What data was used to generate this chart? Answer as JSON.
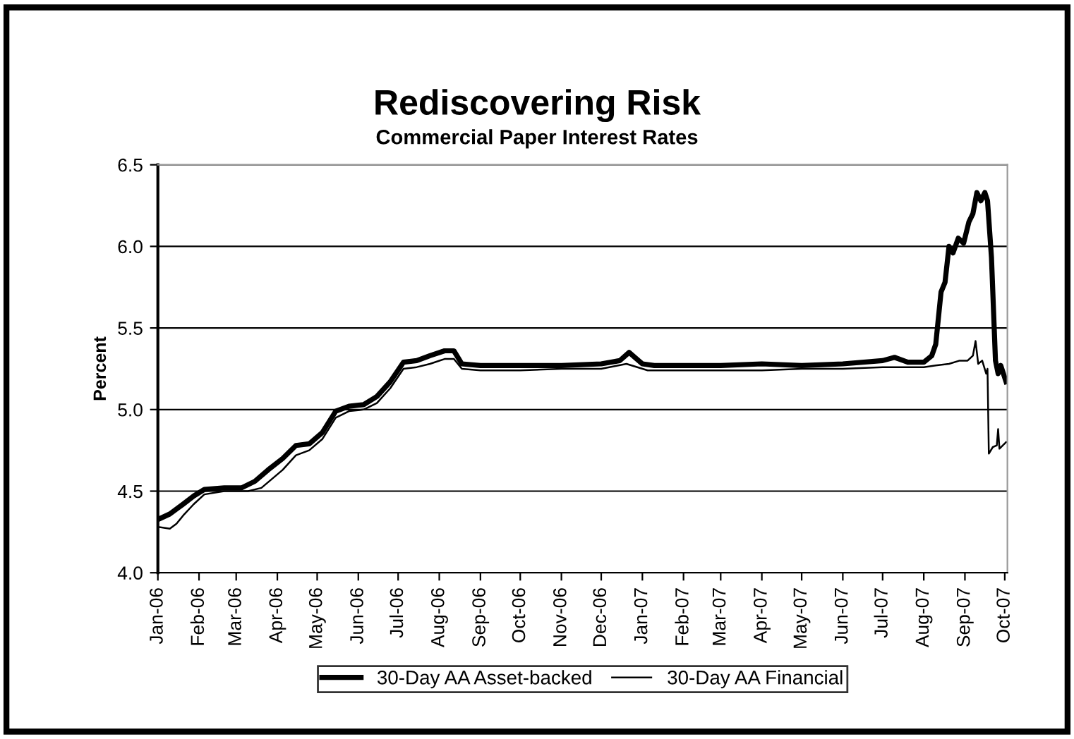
{
  "chart_data": {
    "type": "line",
    "title": "Rediscovering Risk",
    "subtitle": "Commercial Paper Interest Rates",
    "ylabel": "Percent",
    "ylim": [
      4.0,
      6.5
    ],
    "yticks": [
      {
        "value": 4.0,
        "label": "4.0"
      },
      {
        "value": 4.5,
        "label": "4.5"
      },
      {
        "value": 5.0,
        "label": "5.0"
      },
      {
        "value": 5.5,
        "label": "5.5"
      },
      {
        "value": 6.0,
        "label": "6.0"
      },
      {
        "value": 6.5,
        "label": "6.5"
      }
    ],
    "xlim": [
      "2006-01-01",
      "2007-10-03"
    ],
    "xticks": [
      {
        "value": "2006-01-01",
        "label": "Jan-06"
      },
      {
        "value": "2006-02-01",
        "label": "Feb-06"
      },
      {
        "value": "2006-03-01",
        "label": "Mar-06"
      },
      {
        "value": "2006-04-01",
        "label": "Apr-06"
      },
      {
        "value": "2006-05-01",
        "label": "May-06"
      },
      {
        "value": "2006-06-01",
        "label": "Jun-06"
      },
      {
        "value": "2006-07-01",
        "label": "Jul-06"
      },
      {
        "value": "2006-08-01",
        "label": "Aug-06"
      },
      {
        "value": "2006-09-01",
        "label": "Sep-06"
      },
      {
        "value": "2006-10-01",
        "label": "Oct-06"
      },
      {
        "value": "2006-11-01",
        "label": "Nov-06"
      },
      {
        "value": "2006-12-01",
        "label": "Dec-06"
      },
      {
        "value": "2007-01-01",
        "label": "Jan-07"
      },
      {
        "value": "2007-02-01",
        "label": "Feb-07"
      },
      {
        "value": "2007-03-01",
        "label": "Mar-07"
      },
      {
        "value": "2007-04-01",
        "label": "Apr-07"
      },
      {
        "value": "2007-05-01",
        "label": "May-07"
      },
      {
        "value": "2007-06-01",
        "label": "Jun-07"
      },
      {
        "value": "2007-07-01",
        "label": "Jul-07"
      },
      {
        "value": "2007-08-01",
        "label": "Aug-07"
      },
      {
        "value": "2007-09-01",
        "label": "Sep-07"
      },
      {
        "value": "2007-10-01",
        "label": "Oct-07"
      }
    ],
    "grid": "y",
    "legend": "bottom",
    "marker": "none",
    "line_style": "solid",
    "series": [
      {
        "name": "30-Day AA Asset-backed",
        "color": "#000000",
        "x": [
          "2006-01-02",
          "2006-01-10",
          "2006-01-20",
          "2006-01-28",
          "2006-02-05",
          "2006-02-20",
          "2006-03-05",
          "2006-03-15",
          "2006-03-25",
          "2006-04-05",
          "2006-04-15",
          "2006-04-25",
          "2006-05-05",
          "2006-05-15",
          "2006-05-25",
          "2006-06-05",
          "2006-06-15",
          "2006-06-25",
          "2006-07-05",
          "2006-07-15",
          "2006-07-25",
          "2006-08-05",
          "2006-08-12",
          "2006-08-18",
          "2006-09-01",
          "2006-10-01",
          "2006-11-01",
          "2006-12-01",
          "2006-12-15",
          "2006-12-22",
          "2007-01-01",
          "2007-01-10",
          "2007-02-01",
          "2007-03-01",
          "2007-04-01",
          "2007-05-01",
          "2007-06-01",
          "2007-07-01",
          "2007-07-10",
          "2007-07-20",
          "2007-08-01",
          "2007-08-07",
          "2007-08-10",
          "2007-08-14",
          "2007-08-17",
          "2007-08-20",
          "2007-08-23",
          "2007-08-27",
          "2007-08-31",
          "2007-09-04",
          "2007-09-07",
          "2007-09-10",
          "2007-09-13",
          "2007-09-16",
          "2007-09-18",
          "2007-09-21",
          "2007-09-24",
          "2007-09-26",
          "2007-09-28",
          "2007-10-02"
        ],
        "values": [
          4.33,
          4.36,
          4.42,
          4.47,
          4.51,
          4.52,
          4.52,
          4.56,
          4.63,
          4.7,
          4.78,
          4.79,
          4.86,
          4.99,
          5.02,
          5.03,
          5.08,
          5.17,
          5.29,
          5.3,
          5.33,
          5.36,
          5.36,
          5.28,
          5.27,
          5.27,
          5.27,
          5.28,
          5.3,
          5.35,
          5.28,
          5.27,
          5.27,
          5.27,
          5.28,
          5.27,
          5.28,
          5.3,
          5.32,
          5.29,
          5.29,
          5.33,
          5.4,
          5.72,
          5.78,
          6.0,
          5.96,
          6.05,
          6.02,
          6.15,
          6.2,
          6.33,
          6.28,
          6.33,
          6.28,
          5.93,
          5.3,
          5.22,
          5.27,
          5.17
        ]
      },
      {
        "name": "30-Day AA Financial",
        "color": "#000000",
        "x": [
          "2006-01-02",
          "2006-01-10",
          "2006-01-15",
          "2006-01-20",
          "2006-01-28",
          "2006-02-05",
          "2006-02-20",
          "2006-03-10",
          "2006-03-20",
          "2006-04-05",
          "2006-04-15",
          "2006-04-25",
          "2006-05-05",
          "2006-05-15",
          "2006-05-25",
          "2006-06-05",
          "2006-06-15",
          "2006-06-25",
          "2006-07-05",
          "2006-07-15",
          "2006-07-25",
          "2006-08-05",
          "2006-08-12",
          "2006-08-18",
          "2006-09-01",
          "2006-10-01",
          "2006-11-01",
          "2006-12-01",
          "2006-12-20",
          "2007-01-05",
          "2007-02-01",
          "2007-03-01",
          "2007-04-01",
          "2007-05-01",
          "2007-06-01",
          "2007-07-01",
          "2007-08-01",
          "2007-08-10",
          "2007-08-20",
          "2007-08-28",
          "2007-09-03",
          "2007-09-07",
          "2007-09-09",
          "2007-09-11",
          "2007-09-14",
          "2007-09-17",
          "2007-09-18",
          "2007-09-19",
          "2007-09-22",
          "2007-09-25",
          "2007-09-26",
          "2007-09-27",
          "2007-10-02"
        ],
        "values": [
          4.28,
          4.27,
          4.3,
          4.35,
          4.42,
          4.48,
          4.5,
          4.5,
          4.52,
          4.63,
          4.72,
          4.75,
          4.82,
          4.95,
          4.99,
          5.0,
          5.04,
          5.13,
          5.25,
          5.26,
          5.28,
          5.31,
          5.31,
          5.25,
          5.24,
          5.24,
          5.25,
          5.25,
          5.28,
          5.24,
          5.24,
          5.24,
          5.24,
          5.25,
          5.25,
          5.26,
          5.26,
          5.27,
          5.28,
          5.3,
          5.3,
          5.33,
          5.42,
          5.28,
          5.3,
          5.22,
          5.25,
          4.73,
          4.77,
          4.78,
          4.88,
          4.76,
          4.8
        ]
      }
    ]
  }
}
